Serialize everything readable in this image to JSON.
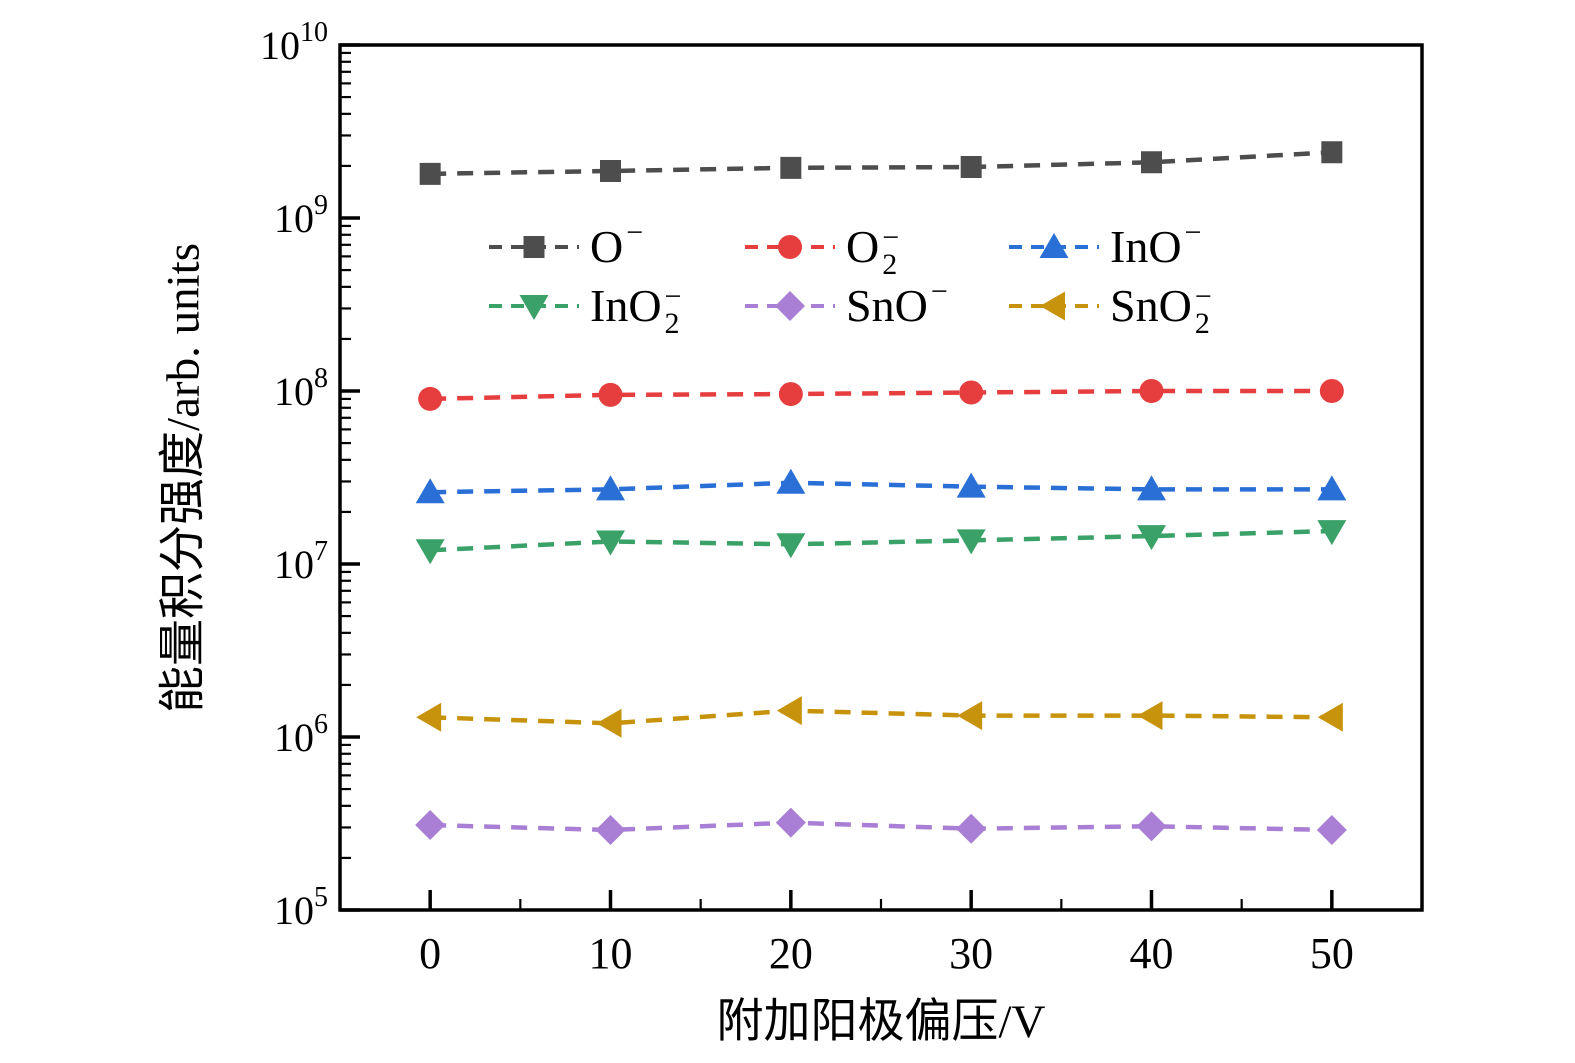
{
  "figure": {
    "background": "#ffffff",
    "axis_color": "#000000"
  },
  "chart_data": {
    "type": "line",
    "title": "",
    "xlabel": "附加阳极偏压/V",
    "ylabel": "能量积分强度/arb. units",
    "grid": false,
    "line_style": "dashed",
    "x": [
      0,
      10,
      20,
      30,
      40,
      50
    ],
    "xlim": [
      -5,
      55
    ],
    "x_major_ticks": [
      0,
      10,
      20,
      30,
      40,
      50
    ],
    "x_minor_step": 5,
    "y_scale": "log",
    "ylim_exponents": [
      5,
      10
    ],
    "y_tick_exponents": [
      10,
      9,
      8,
      7,
      6,
      5
    ],
    "y_tick_base": "10",
    "legend": {
      "position": "upper-center-inside",
      "rows": 2,
      "cols": 3,
      "frame": false
    },
    "series": [
      {
        "name": "O-",
        "label": {
          "base": "O",
          "sup": "−",
          "sub": ""
        },
        "marker": "square",
        "color": "#4d4d4d",
        "values": [
          1800000000.0,
          1870000000.0,
          1950000000.0,
          1970000000.0,
          2100000000.0,
          2400000000.0
        ]
      },
      {
        "name": "O2-",
        "label": {
          "base": "O",
          "sup": "−",
          "sub": "2"
        },
        "marker": "circle",
        "color": "#e63e3e",
        "values": [
          90000000.0,
          95000000.0,
          96000000.0,
          98000000.0,
          100000000.0,
          100000000.0
        ]
      },
      {
        "name": "InO-",
        "label": {
          "base": "InO",
          "sup": "−",
          "sub": ""
        },
        "marker": "triangle-up",
        "color": "#2a6fd6",
        "values": [
          26000000.0,
          27000000.0,
          29500000.0,
          28000000.0,
          27000000.0,
          27000000.0
        ]
      },
      {
        "name": "InO2-",
        "label": {
          "base": "InO",
          "sup": "−",
          "sub": "2"
        },
        "marker": "triangle-down",
        "color": "#3aa169",
        "values": [
          12000000.0,
          13500000.0,
          13000000.0,
          13700000.0,
          14500000.0,
          15500000.0
        ]
      },
      {
        "name": "SnO-",
        "label": {
          "base": "SnO",
          "sup": "−",
          "sub": ""
        },
        "marker": "diamond",
        "color": "#a97fd6",
        "values": [
          310000.0,
          290000.0,
          320000.0,
          295000.0,
          305000.0,
          290000.0
        ]
      },
      {
        "name": "SnO2-",
        "label": {
          "base": "SnO",
          "sup": "−",
          "sub": "2"
        },
        "marker": "triangle-left",
        "color": "#c7930d",
        "values": [
          1300000.0,
          1200000.0,
          1420000.0,
          1330000.0,
          1330000.0,
          1300000.0
        ]
      }
    ]
  }
}
